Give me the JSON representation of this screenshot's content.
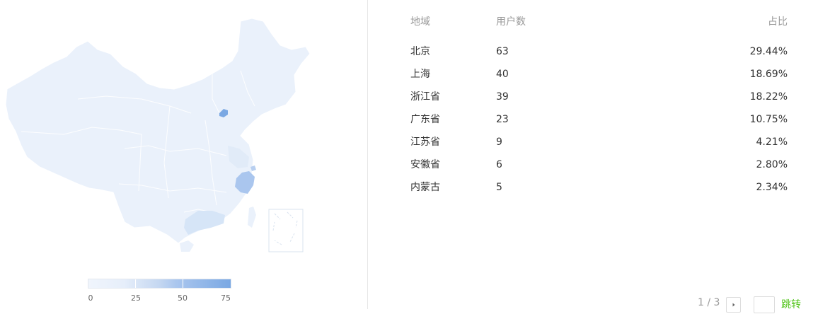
{
  "map": {
    "legend": {
      "ticks": [
        "0",
        "25",
        "50",
        "75"
      ],
      "colors": [
        "#f0f5fc",
        "#e6eefa",
        "#c4d7f1",
        "#7aa8e3"
      ]
    },
    "colors": {
      "base": "#eaf1fb",
      "border": "#ffffff",
      "beijing": "#7aa8e3",
      "zhejiang": "#aac6ee",
      "guangdong": "#d6e5f7"
    }
  },
  "table": {
    "headers": {
      "region": "地域",
      "users": "用户数",
      "ratio": "占比"
    },
    "rows": [
      {
        "region": "北京",
        "users": "63",
        "ratio": "29.44%"
      },
      {
        "region": "上海",
        "users": "40",
        "ratio": "18.69%"
      },
      {
        "region": "浙江省",
        "users": "39",
        "ratio": "18.22%"
      },
      {
        "region": "广东省",
        "users": "23",
        "ratio": "10.75%"
      },
      {
        "region": "江苏省",
        "users": "9",
        "ratio": "4.21%"
      },
      {
        "region": "安徽省",
        "users": "6",
        "ratio": "2.80%"
      },
      {
        "region": "内蒙古",
        "users": "5",
        "ratio": "2.34%"
      }
    ]
  },
  "pagination": {
    "page_info": "1 / 3",
    "jump_label": "跳转",
    "jump_value": ""
  },
  "accent_color": "#52c41a"
}
